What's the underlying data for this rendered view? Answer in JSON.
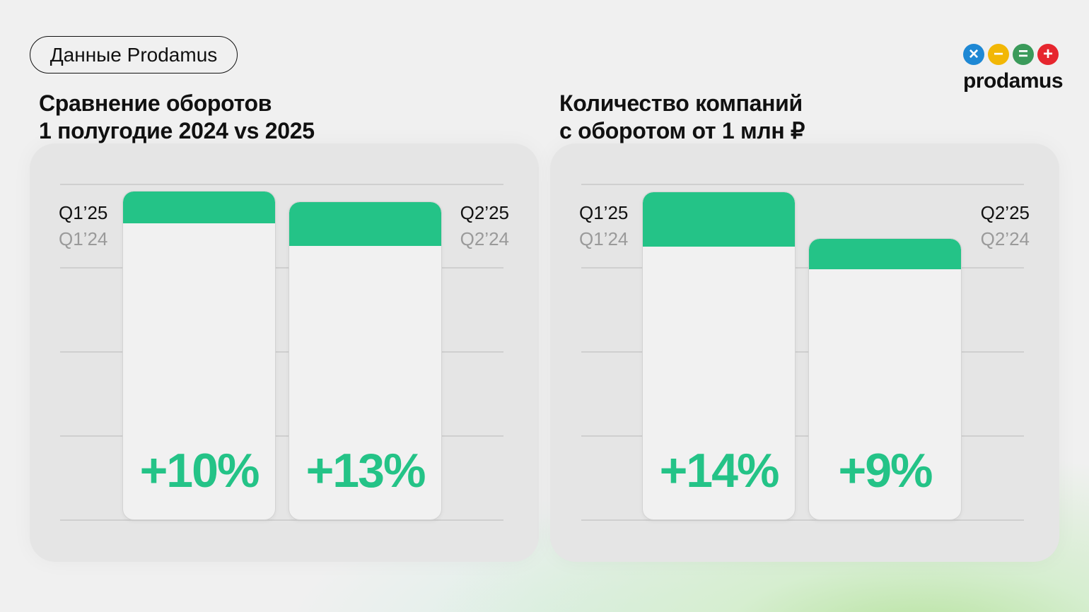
{
  "badge": "Данные Prodamus",
  "logo": {
    "text": "prodamus",
    "icons": [
      "multiply-icon",
      "minus-icon",
      "equals-icon",
      "plus-icon"
    ],
    "colors": [
      "#1e88d4",
      "#f2b705",
      "#3a9a5a",
      "#e6262e"
    ]
  },
  "colors": {
    "accent": "#24c387"
  },
  "chart_data": [
    {
      "type": "bar",
      "title_line1": "Сравнение оборотов",
      "title_line2": "1 полугодие 2024 vs 2025",
      "categories": [
        {
          "label25": "Q1’25",
          "label24": "Q1’24"
        },
        {
          "label25": "Q2’25",
          "label24": "Q2’24"
        }
      ],
      "growth_labels": [
        "+10%",
        "+13%"
      ],
      "growth_pct": [
        10,
        13
      ]
    },
    {
      "type": "bar",
      "title_line1": "Количество компаний",
      "title_line2": "с оборотом от 1 млн ₽",
      "categories": [
        {
          "label25": "Q1’25",
          "label24": "Q1’24"
        },
        {
          "label25": "Q2’25",
          "label24": "Q2’24"
        }
      ],
      "growth_labels": [
        "+14%",
        "+9%"
      ],
      "growth_pct": [
        14,
        9
      ]
    }
  ]
}
